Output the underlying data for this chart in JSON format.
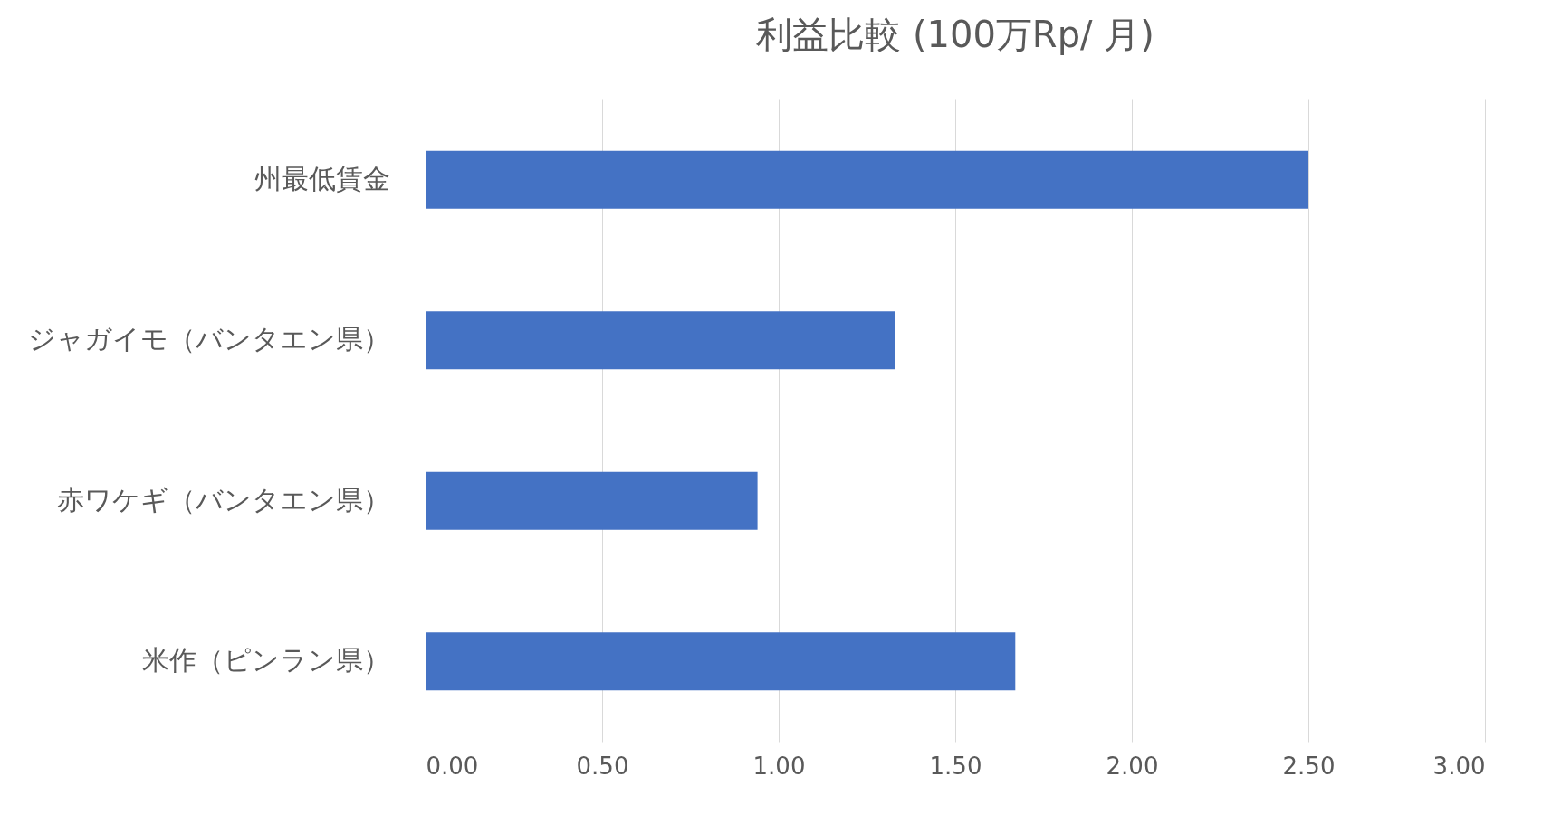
{
  "chart_data": {
    "type": "bar",
    "orientation": "horizontal",
    "title": "利益比較 (100万Rp/ 月)",
    "categories": [
      "州最低賃金",
      "ジャガイモ（バンタエン県）",
      "赤ワケギ（バンタエン県）",
      "米作（ピンラン県）"
    ],
    "values": [
      2.5,
      1.33,
      0.94,
      1.67
    ],
    "color": "#4472c4",
    "xlim": [
      0,
      3
    ],
    "xticks": [
      {
        "value": 0,
        "label": "0.00"
      },
      {
        "value": 0.5,
        "label": "0.50"
      },
      {
        "value": 1,
        "label": "1.00"
      },
      {
        "value": 1.5,
        "label": "1.50"
      },
      {
        "value": 2,
        "label": "2.00"
      },
      {
        "value": 2.5,
        "label": "2.50"
      },
      {
        "value": 3,
        "label": "3.00"
      }
    ],
    "grid": "x"
  }
}
